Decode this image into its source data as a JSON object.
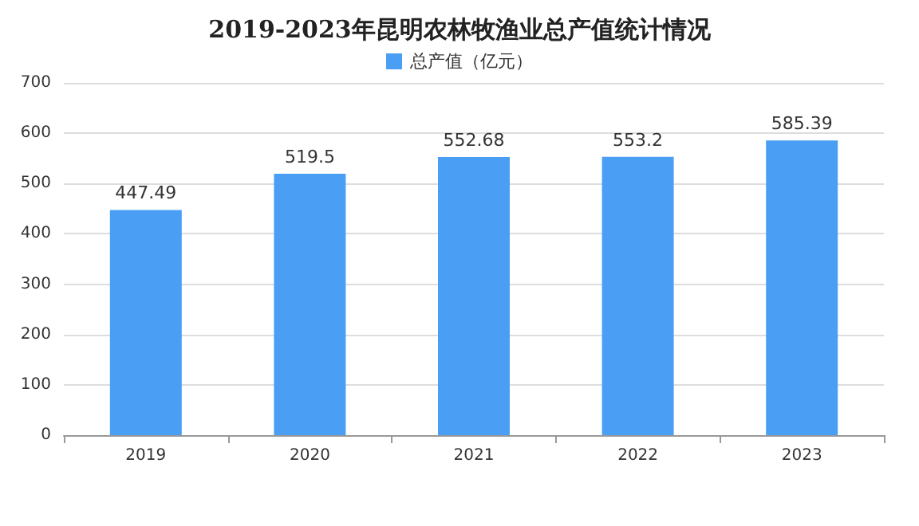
{
  "chart_data": {
    "type": "bar",
    "title": "2019-2023年昆明农林牧渔业总产值统计情况",
    "categories": [
      "2019",
      "2020",
      "2021",
      "2022",
      "2023"
    ],
    "series": [
      {
        "name": "总产值（亿元）",
        "color": "#4a9ff5",
        "values": [
          447.49,
          519.5,
          552.68,
          553.2,
          585.39
        ]
      }
    ],
    "ylim": [
      0,
      700
    ],
    "yticks": [
      0,
      100,
      200,
      300,
      400,
      500,
      600,
      700
    ],
    "grid": "y",
    "legend": "top",
    "data_labels": true
  }
}
